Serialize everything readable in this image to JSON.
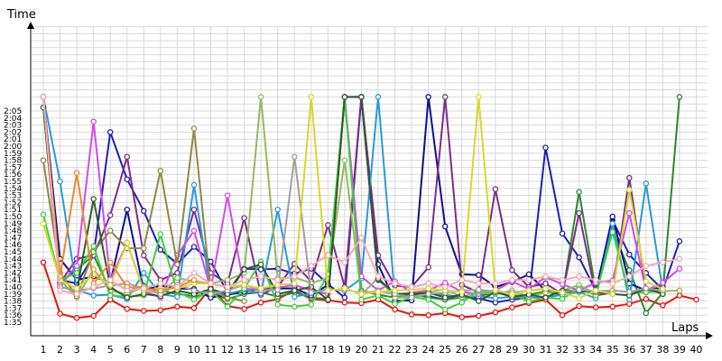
{
  "chart_data": {
    "type": "line",
    "xlabel": "Laps",
    "ylabel": "Time",
    "xlim": [
      1,
      40
    ],
    "ylim_seconds": [
      93,
      127
    ],
    "y_tick_labels": [
      "1:35",
      "1:36",
      "1:37",
      "1:38",
      "1:39",
      "1:40",
      "1:41",
      "1:42",
      "1:43",
      "1:44",
      "1:45",
      "1:46",
      "1:47",
      "1:48",
      "1:49",
      "1:50",
      "1:51",
      "1:52",
      "1:53",
      "1:54",
      "1:55",
      "1:56",
      "1:57",
      "1:58",
      "1:59",
      "2:00",
      "2:01",
      "2:02",
      "2:03",
      "2:04",
      "2:05"
    ],
    "x_tick_labels": [
      "1",
      "2",
      "3",
      "4",
      "5",
      "6",
      "7",
      "8",
      "9",
      "10",
      "11",
      "12",
      "13",
      "14",
      "15",
      "16",
      "17",
      "18",
      "19",
      "20",
      "21",
      "22",
      "23",
      "24",
      "25",
      "26",
      "27",
      "28",
      "29",
      "30",
      "31",
      "32",
      "33",
      "34",
      "35",
      "36",
      "37",
      "38",
      "39",
      "40"
    ],
    "grid": true,
    "legend": "none",
    "series": [
      {
        "color": "#e8140c",
        "x": [
          1,
          2,
          3,
          4,
          5,
          6,
          7,
          8,
          9,
          10,
          11,
          12,
          13,
          14,
          15,
          16,
          17,
          18,
          19,
          20,
          21,
          22,
          23,
          24,
          25,
          26,
          27,
          28,
          29,
          30,
          31,
          32,
          33,
          34,
          35,
          36,
          37,
          38,
          39,
          40
        ],
        "y": [
          103.5,
          96.2,
          95.6,
          95.9,
          98.2,
          96.9,
          96.6,
          96.7,
          97.2,
          97.0,
          99.9,
          97.3,
          96.9,
          97.8,
          98.3,
          99.5,
          98.3,
          98.1,
          97.8,
          97.7,
          98.2,
          96.8,
          96.1,
          96.0,
          96.3,
          95.7,
          95.9,
          96.4,
          97.1,
          97.7,
          98.2,
          96.0,
          97.3,
          97.1,
          97.2,
          97.6,
          98.3,
          97.4,
          98.8,
          98.2
        ]
      },
      {
        "color": "#1f1fb4",
        "x": [
          1,
          2,
          3,
          4,
          5,
          6,
          7,
          8,
          9,
          10,
          11,
          12,
          13,
          14,
          15,
          16,
          17,
          18,
          19,
          20,
          21,
          22,
          23,
          24,
          25,
          26,
          27,
          28,
          29,
          30,
          31,
          32,
          33,
          34,
          35,
          36,
          37,
          38,
          39
        ],
        "y": [
          127,
          101.0,
          100.5,
          104.5,
          122.0,
          115.3,
          110.8,
          105.3,
          103.3,
          105.7,
          103.6,
          99.2,
          102.6,
          102.5,
          102.6,
          101.9,
          102.6,
          100.4,
          98.5,
          127,
          101.0,
          99.0,
          99.1,
          98.7,
          98.2,
          98.7,
          98.4,
          97.8,
          98.2,
          98.5,
          119.8,
          107.6,
          104.2,
          99.5,
          109.5,
          104.6,
          102.0,
          99.6,
          106.5
        ]
      },
      {
        "color": "#2a8a2a",
        "x": [
          1,
          2,
          3,
          4,
          5,
          6,
          7,
          8,
          9,
          10,
          11,
          12,
          13,
          14,
          15,
          16,
          17,
          18,
          19,
          20,
          21,
          22,
          23,
          24,
          25,
          26,
          27,
          28,
          29,
          30,
          31,
          32,
          33,
          34,
          35,
          36,
          37,
          38,
          39
        ],
        "y": [
          127,
          100.5,
          102.5,
          104.5,
          99.5,
          99.0,
          100.2,
          99.5,
          99.0,
          98.7,
          99.0,
          98.3,
          99.0,
          99.3,
          98.6,
          99.2,
          98.5,
          98.3,
          127,
          99.5,
          98.9,
          98.5,
          99.0,
          98.5,
          98.2,
          98.5,
          98.7,
          99.2,
          98.7,
          98.9,
          99.4,
          98.8,
          113.5,
          99.5,
          108.0,
          102.4,
          96.3,
          99.2,
          127
        ]
      },
      {
        "color": "#0f0f8c",
        "x": [
          1,
          2,
          3,
          4,
          5,
          6,
          7,
          8,
          9,
          10,
          11,
          12,
          13,
          14,
          15,
          16,
          17,
          18,
          19,
          20,
          21,
          22,
          23,
          24,
          25,
          26,
          27,
          28,
          29,
          30,
          31,
          32,
          33,
          34,
          35,
          36,
          37,
          38
        ],
        "y": [
          127,
          104.0,
          101.0,
          101.5,
          100.6,
          111.0,
          99.5,
          100.2,
          99.8,
          99.7,
          98.5,
          98.9,
          99.3,
          99.8,
          99.8,
          99.8,
          98.8,
          100.3,
          127,
          127,
          103.2,
          98.0,
          98.1,
          127,
          108.6,
          101.8,
          101.7,
          100.0,
          100.7,
          101.8,
          99.5,
          99.3,
          99.4,
          99.3,
          110.0,
          100.5,
          99.5,
          100.0
        ]
      },
      {
        "color": "#7d2d8a",
        "x": [
          1,
          2,
          3,
          4,
          5,
          6,
          7,
          8,
          9,
          10,
          11,
          12,
          13,
          14,
          15,
          16,
          17,
          18,
          19,
          20,
          21,
          22,
          23,
          24,
          25,
          26,
          27,
          28,
          29,
          30,
          31,
          32,
          33,
          34,
          35,
          36,
          37,
          38
        ],
        "y": [
          127,
          100.6,
          104.0,
          104.5,
          110.2,
          118.5,
          104.5,
          101.0,
          102.0,
          111.0,
          102.0,
          100.5,
          109.8,
          98.9,
          100.0,
          103.3,
          100.8,
          108.8,
          100.0,
          127,
          104.5,
          100.2,
          100.0,
          102.8,
          127,
          100.3,
          99.2,
          113.9,
          102.4,
          100.0,
          100.5,
          99.0,
          110.5,
          98.8,
          99.2,
          115.5,
          99.8,
          99.5
        ]
      },
      {
        "color": "#2a9adc",
        "x": [
          1,
          2,
          3,
          4,
          5,
          6,
          7,
          8,
          9,
          10,
          11,
          12,
          13,
          14,
          15,
          16,
          17,
          18,
          19,
          20,
          21,
          22,
          23,
          24,
          25,
          26,
          27,
          28,
          29,
          30,
          31,
          32,
          33,
          34,
          35,
          36,
          37,
          38
        ],
        "y": [
          127,
          115.0,
          99.6,
          98.8,
          98.9,
          98.3,
          102.0,
          99.0,
          98.6,
          114.5,
          99.2,
          99.0,
          99.6,
          99.1,
          111.0,
          98.6,
          99.1,
          99.7,
          99.5,
          101.2,
          127,
          98.5,
          98.6,
          99.0,
          98.9,
          98.5,
          98.7,
          98.4,
          98.6,
          98.5,
          98.5,
          98.9,
          99.3,
          98.4,
          109.0,
          98.2,
          114.7,
          99.5
        ]
      },
      {
        "color": "#d24be6",
        "x": [
          1,
          2,
          3,
          4,
          5,
          6,
          7,
          8,
          9,
          10,
          11,
          12,
          13,
          14,
          15,
          16,
          17,
          18,
          19,
          20,
          21,
          22,
          23,
          24,
          25,
          26,
          27,
          28,
          29,
          30,
          31,
          32,
          33,
          34,
          35,
          36,
          37,
          38,
          39
        ],
        "y": [
          127,
          100.3,
          103.0,
          123.5,
          101.0,
          106.3,
          99.5,
          98.5,
          104.5,
          108.0,
          99.7,
          113.0,
          99.8,
          99.5,
          99.9,
          100.3,
          99.5,
          99.0,
          127,
          101.5,
          99.5,
          100.8,
          99.2,
          99.5,
          100.6,
          99.3,
          99.0,
          99.5,
          100.8,
          99.7,
          101.4,
          100.4,
          99.5,
          100.6,
          100.9,
          110.5,
          99.5,
          100.6,
          102.6
        ]
      },
      {
        "color": "#99b85c",
        "x": [
          1,
          2,
          3,
          4,
          5,
          6,
          7,
          8,
          9,
          10,
          11,
          12,
          13,
          14,
          15,
          16,
          17,
          18,
          19,
          20,
          21,
          22,
          23,
          24,
          25,
          26,
          27,
          28,
          29,
          30,
          31,
          32,
          33,
          34,
          35,
          36,
          37,
          38,
          39
        ],
        "y": [
          127,
          101.0,
          98.5,
          102.5,
          99.5,
          99.0,
          100.0,
          99.0,
          101.3,
          100.8,
          100.5,
          101.0,
          102.0,
          127,
          101.2,
          101.4,
          100.5,
          101.3,
          118.0,
          98.9,
          101.3,
          98.5,
          98.5,
          99.2,
          99.7,
          98.6,
          99.3,
          99.0,
          99.5,
          98.6,
          99.2,
          99.5,
          100.3,
          99.0,
          99.5,
          99.3,
          99.2,
          99.4,
          99.5
        ]
      },
      {
        "color": "#8c8a46",
        "x": [
          1,
          2,
          3,
          4,
          5,
          6,
          7,
          8,
          9,
          10,
          11,
          12,
          13
        ],
        "y": [
          118.0,
          102.0,
          98.7,
          105.0,
          108.0,
          105.5,
          105.5,
          116.5,
          103.2,
          122.5,
          99.5,
          98.5,
          98.0
        ]
      },
      {
        "color": "#3fcf3f",
        "x": [
          1,
          2,
          3,
          4,
          5,
          6,
          7,
          8,
          9,
          10,
          11,
          12,
          13,
          14,
          15,
          16,
          17,
          18,
          19,
          20,
          21,
          22,
          23,
          24,
          25,
          26,
          27,
          28,
          29,
          30,
          31,
          32,
          33,
          34,
          35,
          36,
          37,
          38
        ],
        "y": [
          110.3,
          101.0,
          102.0,
          105.8,
          98.8,
          98.6,
          98.8,
          107.5,
          99.3,
          98.2,
          99.5,
          97.2,
          99.8,
          103.6,
          97.5,
          97.2,
          97.5,
          101.8,
          127,
          98.2,
          98.8,
          97.6,
          98.6,
          98.2,
          96.8,
          97.8,
          99.5,
          99.2,
          99.0,
          97.9,
          98.5,
          98.3,
          99.8,
          98.8,
          107.8,
          99.2,
          99.3,
          99.5
        ]
      },
      {
        "color": "#2f5a2f",
        "x": [
          1,
          2,
          3,
          4,
          5,
          6,
          7,
          8,
          9,
          10,
          11,
          12,
          13,
          14,
          15,
          16,
          17,
          18,
          19,
          20,
          21,
          22,
          23,
          24,
          25,
          26,
          27,
          28,
          29,
          30,
          31,
          32,
          33,
          34,
          35,
          36,
          37,
          38
        ],
        "y": [
          125.5,
          100.0,
          99.5,
          112.5,
          100.0,
          98.5,
          99.0,
          98.7,
          99.5,
          99.0,
          99.7,
          99.0,
          102.5,
          103.2,
          99.0,
          99.5,
          100.0,
          98.2,
          127,
          127,
          101.2,
          99.0,
          99.0,
          99.2,
          98.5,
          98.9,
          98.0,
          99.3,
          98.6,
          98.9,
          98.5,
          99.5,
          99.5,
          99.3,
          99.0,
          98.8,
          99.8,
          99.0
        ]
      },
      {
        "color": "#a0a0a0",
        "x": [
          1,
          2,
          3,
          4,
          5,
          6,
          7,
          8,
          9,
          10,
          11,
          12,
          13,
          14,
          15,
          16,
          17,
          18,
          19,
          20,
          21,
          22,
          23,
          24,
          25,
          26,
          27,
          28,
          29,
          30,
          31,
          32,
          33,
          34,
          35,
          36,
          37,
          38
        ],
        "y": [
          127,
          100.0,
          99.5,
          99.8,
          100.2,
          100.5,
          99.8,
          99.0,
          100.3,
          99.5,
          99.0,
          99.5,
          100.3,
          99.5,
          99.6,
          118.5,
          99.2,
          99.6,
          99.6,
          99.2,
          99.4,
          99.0,
          98.5,
          99.0,
          99.2,
          99.5,
          99.6,
          99.4,
          99.2,
          99.5,
          99.7,
          99.3,
          99.6,
          99.4,
          99.5,
          99.3,
          99.8,
          99.5
        ]
      },
      {
        "color": "#d8d82a",
        "x": [
          1,
          2,
          3,
          4,
          5,
          6,
          7,
          8,
          9,
          10,
          11,
          12,
          13,
          14,
          15,
          16,
          17,
          18,
          19,
          20,
          21,
          22,
          23,
          24,
          25,
          26,
          27,
          28,
          29,
          30,
          31,
          32,
          33,
          34,
          35,
          36,
          37,
          38
        ],
        "y": [
          109.0,
          101.0,
          99.8,
          101.8,
          100.3,
          106.3,
          99.5,
          99.8,
          99.8,
          100.5,
          100.5,
          100.0,
          100.3,
          99.8,
          100.3,
          100.5,
          127,
          99.5,
          99.8,
          99.0,
          99.3,
          99.5,
          99.6,
          99.8,
          99.5,
          99.3,
          127,
          99.6,
          98.9,
          99.5,
          99.8,
          99.2,
          98.4,
          99.5,
          99.0,
          113.8,
          100.8,
          99.7
        ]
      },
      {
        "color": "#f08828",
        "x": [
          1,
          2,
          3,
          4,
          5,
          6,
          7,
          8,
          9,
          10
        ],
        "y": [
          127,
          101.5,
          116.2,
          100.5,
          103.5,
          100.0,
          99.8,
          99.5,
          100.0,
          101.0
        ]
      },
      {
        "color": "#f4a9b4",
        "x": [
          1,
          2,
          3,
          4,
          5,
          6,
          7,
          8,
          9,
          10,
          11,
          12,
          13,
          14,
          15,
          16,
          17,
          18,
          19,
          20,
          21,
          22,
          23,
          24,
          25,
          26,
          27,
          28,
          29,
          30,
          31,
          32,
          33,
          34,
          35,
          36,
          37,
          38,
          39
        ],
        "y": [
          127,
          99.5,
          99.0,
          100.0,
          101.0,
          99.5,
          99.8,
          100.5,
          100.0,
          102.0,
          100.5,
          100.0,
          101.0,
          101.5,
          101.0,
          101.5,
          103.0,
          104.5,
          103.5,
          107.0,
          101.5,
          100.5,
          100.0,
          100.5,
          100.0,
          101.0,
          100.5,
          100.5,
          101.0,
          101.0,
          101.5,
          101.0,
          101.5,
          101.0,
          100.5,
          101.5,
          103.0,
          103.5,
          104.0
        ]
      }
    ]
  }
}
